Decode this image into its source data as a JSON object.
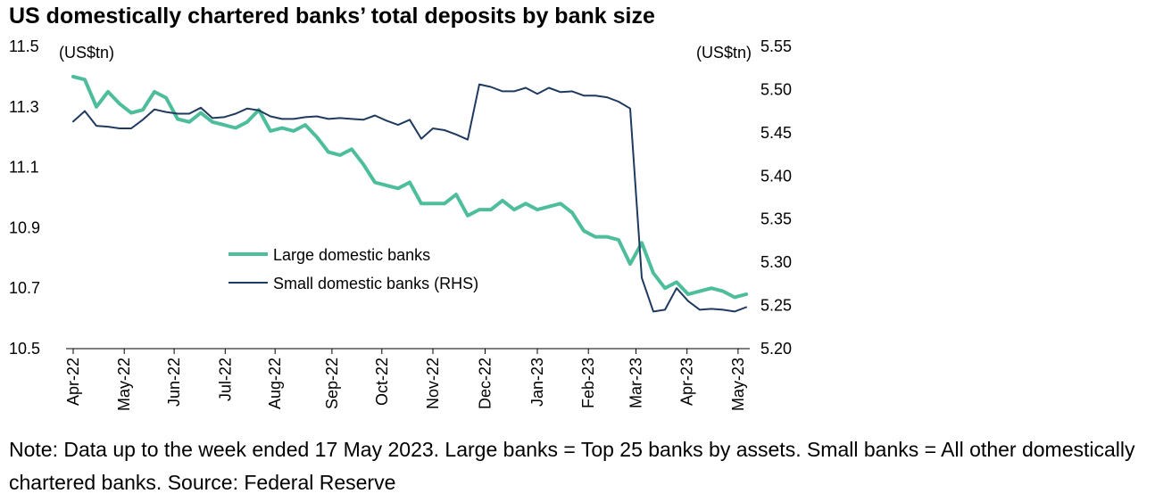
{
  "title": "US domestically chartered banks’ total deposits by bank size",
  "note": "Note: Data up to the week ended 17 May 2023. Large banks = Top 25 banks by assets. Small banks = All other domestically chartered banks. Source: Federal Reserve",
  "chart_data": {
    "type": "line",
    "x_unit": "weeks (first week: early Apr 2022; last week: 17 May 2023)",
    "x_tick_labels": [
      "Apr-22",
      "May-22",
      "Jun-22",
      "Jul-22",
      "Aug-22",
      "Sep-22",
      "Oct-22",
      "Nov-22",
      "Dec-22",
      "Jan-23",
      "Feb-23",
      "Mar-23",
      "Apr-23",
      "May-23"
    ],
    "x_tick_weeks": [
      0,
      4.4,
      8.7,
      13.1,
      17.4,
      22.3,
      26.6,
      31,
      35.5,
      40,
      44.4,
      48.5,
      52.9,
      57.3
    ],
    "y_left": {
      "unit_label": "(US$tn)",
      "ylim": [
        10.5,
        11.5
      ],
      "ticks": [
        "10.5",
        "10.7",
        "10.9",
        "11.1",
        "11.3",
        "11.5"
      ]
    },
    "y_right": {
      "unit_label": "(US$tn)",
      "ylim": [
        5.2,
        5.55
      ],
      "ticks": [
        "5.20",
        "5.25",
        "5.30",
        "5.35",
        "5.40",
        "5.45",
        "5.50",
        "5.55"
      ]
    },
    "legend": {
      "placement": "center-left"
    },
    "series": [
      {
        "name": "Large domestic banks",
        "axis": "left",
        "color": "#4dbd9b",
        "values": [
          11.4,
          11.39,
          11.3,
          11.35,
          11.31,
          11.28,
          11.29,
          11.35,
          11.33,
          11.26,
          11.25,
          11.28,
          11.25,
          11.24,
          11.23,
          11.25,
          11.29,
          11.22,
          11.23,
          11.22,
          11.24,
          11.2,
          11.15,
          11.14,
          11.16,
          11.11,
          11.05,
          11.04,
          11.03,
          11.05,
          10.98,
          10.98,
          10.98,
          11.01,
          10.94,
          10.96,
          10.96,
          10.99,
          10.96,
          10.98,
          10.96,
          10.97,
          10.98,
          10.95,
          10.89,
          10.87,
          10.87,
          10.86,
          10.78,
          10.85,
          10.75,
          10.7,
          10.72,
          10.68,
          10.69,
          10.7,
          10.69,
          10.67,
          10.68
        ]
      },
      {
        "name": "Small domestic banks (RHS)",
        "axis": "right",
        "color": "#1f3a5f",
        "values": [
          5.463,
          5.475,
          5.458,
          5.457,
          5.455,
          5.455,
          5.465,
          5.477,
          5.474,
          5.472,
          5.472,
          5.479,
          5.467,
          5.468,
          5.472,
          5.478,
          5.476,
          5.469,
          5.466,
          5.466,
          5.468,
          5.469,
          5.466,
          5.467,
          5.466,
          5.465,
          5.47,
          5.464,
          5.459,
          5.465,
          5.443,
          5.455,
          5.453,
          5.448,
          5.442,
          5.506,
          5.503,
          5.498,
          5.498,
          5.502,
          5.495,
          5.502,
          5.497,
          5.498,
          5.493,
          5.493,
          5.491,
          5.486,
          5.478,
          5.282,
          5.243,
          5.245,
          5.27,
          5.255,
          5.245,
          5.246,
          5.245,
          5.243,
          5.248
        ]
      }
    ]
  }
}
